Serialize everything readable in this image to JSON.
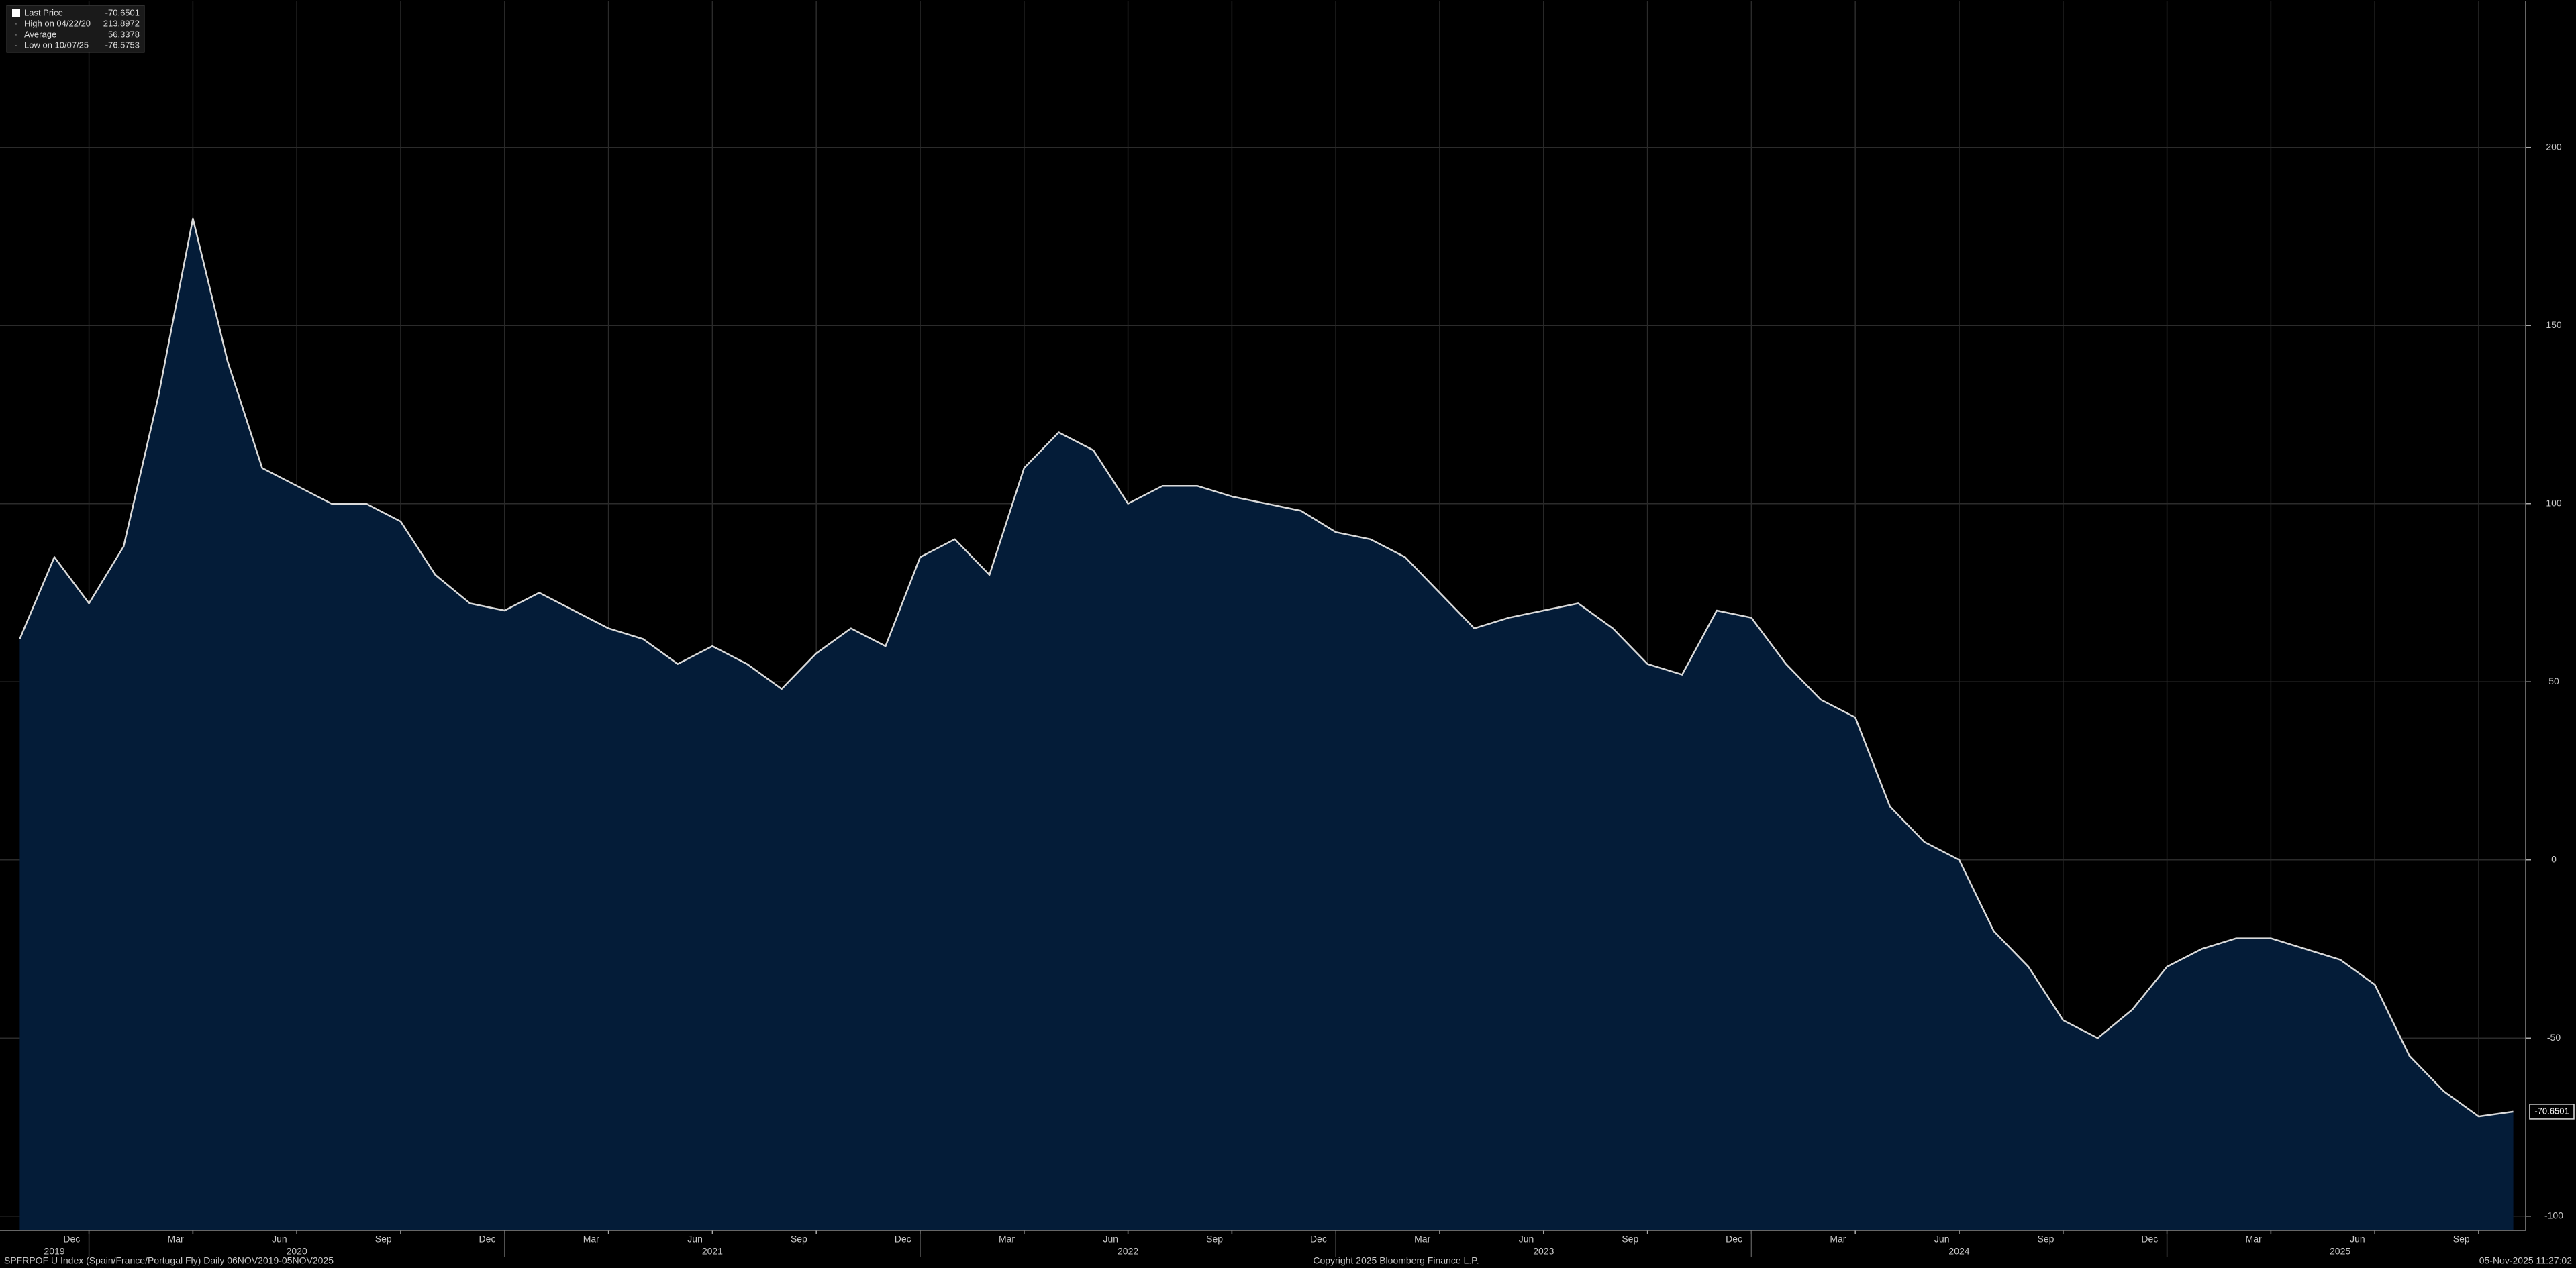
{
  "chart_data": {
    "type": "area",
    "legend": [
      {
        "name": "Last Price",
        "value": -70.6501
      },
      {
        "name": "High on 04/22/20",
        "value": 213.8972
      },
      {
        "name": "Average",
        "value": 56.3378
      },
      {
        "name": "Low on 10/07/25",
        "value": -76.5753
      }
    ],
    "x": [
      "2019-11",
      "2019-12",
      "2020-01",
      "2020-02",
      "2020-03",
      "2020-04",
      "2020-05",
      "2020-06",
      "2020-07",
      "2020-08",
      "2020-09",
      "2020-10",
      "2020-11",
      "2020-12",
      "2021-01",
      "2021-02",
      "2021-03",
      "2021-04",
      "2021-05",
      "2021-06",
      "2021-07",
      "2021-08",
      "2021-09",
      "2021-10",
      "2021-11",
      "2021-12",
      "2022-01",
      "2022-02",
      "2022-03",
      "2022-04",
      "2022-05",
      "2022-06",
      "2022-07",
      "2022-08",
      "2022-09",
      "2022-10",
      "2022-11",
      "2022-12",
      "2023-01",
      "2023-02",
      "2023-03",
      "2023-04",
      "2023-05",
      "2023-06",
      "2023-07",
      "2023-08",
      "2023-09",
      "2023-10",
      "2023-11",
      "2023-12",
      "2024-01",
      "2024-02",
      "2024-03",
      "2024-04",
      "2024-05",
      "2024-06",
      "2024-07",
      "2024-08",
      "2024-09",
      "2024-10",
      "2024-11",
      "2024-12",
      "2025-01",
      "2025-02",
      "2025-03",
      "2025-04",
      "2025-05",
      "2025-06",
      "2025-07",
      "2025-08",
      "2025-09",
      "2025-10",
      "2025-11"
    ],
    "series": [
      {
        "name": "Last Price",
        "color": "#d9d9d9",
        "fill": "#041c38",
        "values": [
          62,
          85,
          72,
          88,
          130,
          180,
          140,
          110,
          105,
          100,
          100,
          95,
          80,
          72,
          70,
          75,
          70,
          65,
          62,
          55,
          60,
          55,
          48,
          58,
          65,
          60,
          85,
          90,
          80,
          110,
          120,
          115,
          100,
          105,
          105,
          102,
          100,
          98,
          92,
          90,
          85,
          75,
          65,
          68,
          70,
          72,
          65,
          55,
          52,
          70,
          68,
          55,
          45,
          40,
          15,
          5,
          0,
          -20,
          -30,
          -45,
          -50,
          -42,
          -30,
          -25,
          -22,
          -22,
          -25,
          -28,
          -35,
          -55,
          -65,
          -72,
          -70.6501
        ]
      }
    ],
    "ylim": [
      -104,
      241
    ],
    "yticks": [
      -100,
      -50,
      0,
      50,
      100,
      150,
      200
    ],
    "xticks": [
      {
        "value": "2019-12",
        "label": "Dec"
      },
      {
        "value": "2020-03",
        "label": "Mar"
      },
      {
        "value": "2020-06",
        "label": "Jun"
      },
      {
        "value": "2020-09",
        "label": "Sep"
      },
      {
        "value": "2020-12",
        "label": "Dec"
      },
      {
        "value": "2021-03",
        "label": "Mar"
      },
      {
        "value": "2021-06",
        "label": "Jun"
      },
      {
        "value": "2021-09",
        "label": "Sep"
      },
      {
        "value": "2021-12",
        "label": "Dec"
      },
      {
        "value": "2022-03",
        "label": "Mar"
      },
      {
        "value": "2022-06",
        "label": "Jun"
      },
      {
        "value": "2022-09",
        "label": "Sep"
      },
      {
        "value": "2022-12",
        "label": "Dec"
      },
      {
        "value": "2023-03",
        "label": "Mar"
      },
      {
        "value": "2023-06",
        "label": "Jun"
      },
      {
        "value": "2023-09",
        "label": "Sep"
      },
      {
        "value": "2023-12",
        "label": "Dec"
      },
      {
        "value": "2024-03",
        "label": "Mar"
      },
      {
        "value": "2024-06",
        "label": "Jun"
      },
      {
        "value": "2024-09",
        "label": "Sep"
      },
      {
        "value": "2024-12",
        "label": "Dec"
      },
      {
        "value": "2025-03",
        "label": "Mar"
      },
      {
        "value": "2025-06",
        "label": "Jun"
      },
      {
        "value": "2025-09",
        "label": "Sep"
      }
    ],
    "years": [
      "2019",
      "2020",
      "2021",
      "2022",
      "2023",
      "2024",
      "2025"
    ],
    "grid": true
  },
  "footer": {
    "left": "SPFRPOF U Index (Spain/France/Portugal Fly) Daily 06NOV2019-05NOV2025",
    "center": "Copyright 2025 Bloomberg Finance L.P.",
    "right": "05-Nov-2025 11:27:02"
  }
}
